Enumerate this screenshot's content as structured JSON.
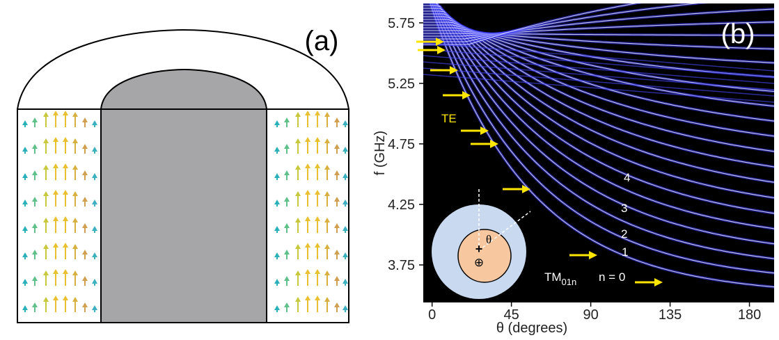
{
  "panel_a": {
    "label": "(a)"
  },
  "panel_b": {
    "label": "(b)",
    "x_label": "θ (degrees)",
    "y_label": "f (GHz)",
    "xlim": [
      -5,
      194
    ],
    "xticks": [
      0,
      45,
      90,
      135,
      180
    ],
    "ylim": [
      3.44,
      5.91
    ],
    "yticks": [
      5.75,
      5.25,
      4.75,
      4.25,
      3.75
    ],
    "annotations": {
      "te": "TE",
      "mode_labels": [
        "4",
        "3",
        "2",
        "1",
        "n = 0"
      ],
      "tm_main": "TM",
      "tm_sub": "01n",
      "inset_angle": "θ"
    }
  }
}
